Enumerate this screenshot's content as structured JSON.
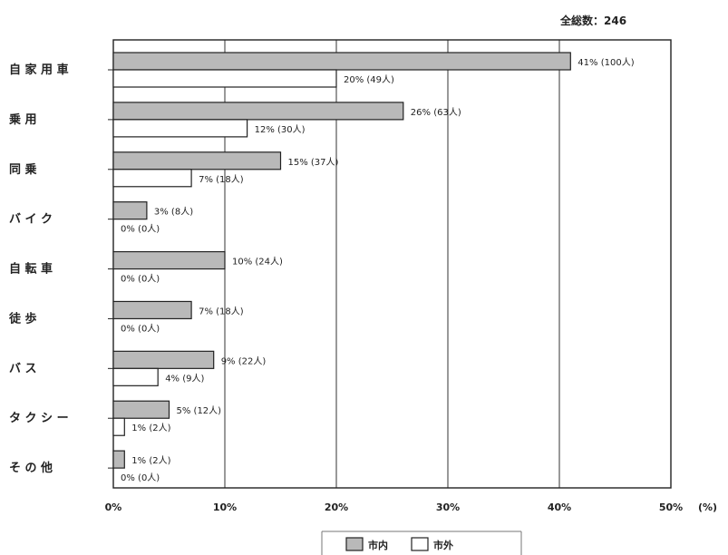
{
  "chart_data": {
    "type": "bar",
    "orientation": "horizontal",
    "total_label": "全総数：246",
    "categories": [
      "自家用車",
      "乗用",
      "同乗",
      "バイク",
      "自転車",
      "徒歩",
      "バス",
      "タクシー",
      "その他"
    ],
    "category_labels": [
      "自 家 用 車",
      "乗 用",
      "同 乗",
      "バ イ ク",
      "自 転 車",
      "徒 歩",
      "バ ス",
      "タ ク シ ー",
      "そ の 他"
    ],
    "series": [
      {
        "name": "市内",
        "color": "#b9b9b9",
        "values": [
          41,
          26,
          15,
          3,
          10,
          7,
          9,
          5,
          1
        ],
        "labels": [
          "41% (100人)",
          "26% (63人)",
          "15% (37人)",
          "3% (8人)",
          "10% (24人)",
          "7% (18人)",
          "9% (22人)",
          "5% (12人)",
          "1% (2人)"
        ]
      },
      {
        "name": "市外",
        "color": "#ffffff",
        "values": [
          20,
          12,
          7,
          0,
          0,
          0,
          4,
          1,
          0
        ],
        "labels": [
          "20% (49人)",
          "12% (30人)",
          "7% (18人)",
          "0% (0人)",
          "0% (0人)",
          "0% (0人)",
          "4% (9人)",
          "1% (2人)",
          "0% (0人)"
        ]
      }
    ],
    "xlim": [
      0,
      50
    ],
    "xticks": [
      "0%",
      "10%",
      "20%",
      "30%",
      "40%",
      "50%"
    ],
    "unit_label": "(%)",
    "grid": true,
    "legend_position": "bottom-center"
  }
}
